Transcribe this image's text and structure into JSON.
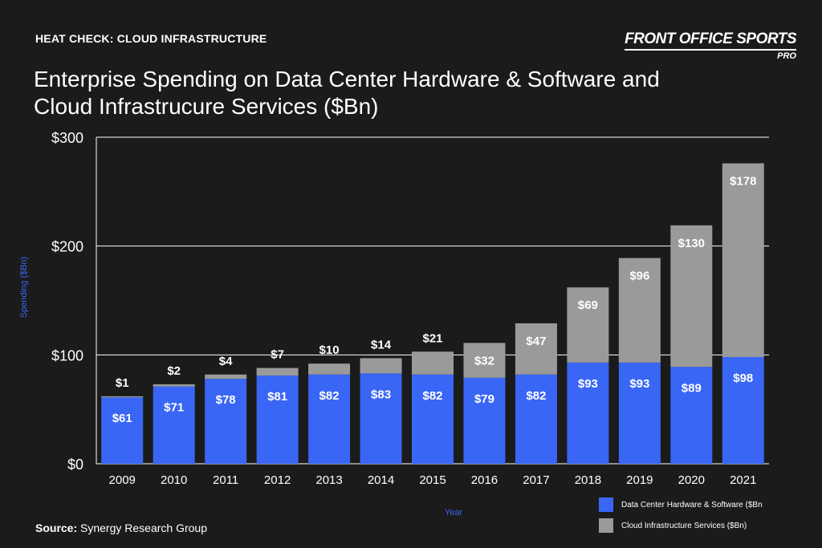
{
  "header": {
    "kicker": "HEAT CHECK: CLOUD INFRASTRUCTURE",
    "brand_name": "FRONT OFFICE SPORTS",
    "brand_sub": "PRO",
    "title_line1": "Enterprise Spending on Data Center Hardware & Software and",
    "title_line2": "Cloud Infrastrucure Services ($Bn)"
  },
  "source": {
    "label": "Source:",
    "text": "Synergy Research Group"
  },
  "colors": {
    "background": "#1b1b1b",
    "series1": "#3a66f5",
    "series2": "#9a9a9a",
    "axis_title": "#3a66f5",
    "grid": "#ffffff"
  },
  "chart_data": {
    "type": "bar",
    "stacked": true,
    "categories": [
      "2009",
      "2010",
      "2011",
      "2012",
      "2013",
      "2014",
      "2015",
      "2016",
      "2017",
      "2018",
      "2019",
      "2020",
      "2021"
    ],
    "series": [
      {
        "name": "Data Center Hardware & Software ($Bn",
        "values": [
          61,
          71,
          78,
          81,
          82,
          83,
          82,
          79,
          82,
          93,
          93,
          89,
          98
        ],
        "labels": [
          "$61",
          "$71",
          "$78",
          "$81",
          "$82",
          "$83",
          "$82",
          "$79",
          "$82",
          "$93",
          "$93",
          "$89",
          "$98"
        ]
      },
      {
        "name": "Cloud Infrastructure Services ($Bn)",
        "values": [
          1,
          2,
          4,
          7,
          10,
          14,
          21,
          32,
          47,
          69,
          96,
          130,
          178
        ],
        "labels": [
          "$1",
          "$2",
          "$4",
          "$7",
          "$10",
          "$14",
          "$21",
          "$32",
          "$47",
          "$69",
          "$96",
          "$130",
          "$178"
        ]
      }
    ],
    "xlabel": "Year",
    "ylabel": "Spending ($Bn)",
    "ylim": [
      0,
      300
    ],
    "yticks": [
      0,
      100,
      200,
      300
    ],
    "ytick_labels": [
      "$0",
      "$100",
      "$200",
      "$300"
    ],
    "grid": true,
    "legend_position": "bottom-right"
  }
}
